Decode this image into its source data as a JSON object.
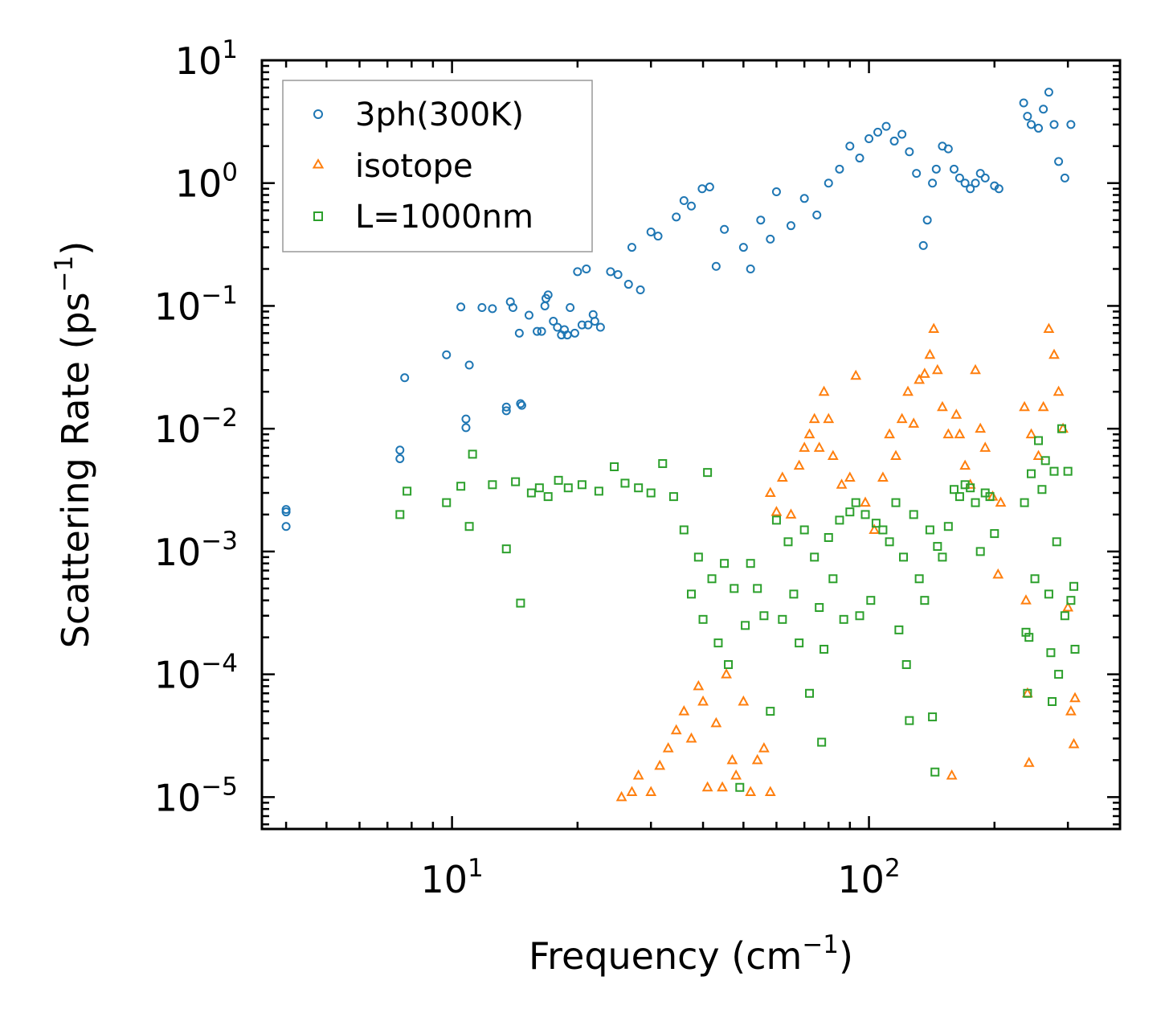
{
  "chart_data": {
    "type": "scatter",
    "title": "",
    "xlabel": "Frequency (cm",
    "xlabel_sup": "−1",
    "xlabel_end": ")",
    "ylabel": "Scattering Rate (ps",
    "ylabel_sup": "−1",
    "ylabel_end": ")",
    "xscale": "log",
    "yscale": "log",
    "xlim": [
      3.5,
      400
    ],
    "ylim": [
      5.5e-06,
      10
    ],
    "x_ticks": [
      {
        "value": 10,
        "base": "10",
        "exp": "1"
      },
      {
        "value": 100,
        "base": "10",
        "exp": "2"
      }
    ],
    "y_ticks": [
      {
        "value": 10,
        "base": "10",
        "exp": "1"
      },
      {
        "value": 1,
        "base": "10",
        "exp": "0"
      },
      {
        "value": 0.1,
        "base": "10",
        "exp": "−1"
      },
      {
        "value": 0.01,
        "base": "10",
        "exp": "−2"
      },
      {
        "value": 0.001,
        "base": "10",
        "exp": "−3"
      },
      {
        "value": 0.0001,
        "base": "10",
        "exp": "−4"
      },
      {
        "value": 1e-05,
        "base": "10",
        "exp": "−5"
      }
    ],
    "legend_position": "top-left",
    "series": [
      {
        "name": "3ph(300K)",
        "marker": "circle",
        "color": "#1f77b4",
        "points": [
          [
            4.0,
            0.0022
          ],
          [
            4.0,
            0.0021
          ],
          [
            4.0,
            0.0016
          ],
          [
            7.5,
            0.0067
          ],
          [
            7.5,
            0.0057
          ],
          [
            7.7,
            0.026
          ],
          [
            9.7,
            0.04
          ],
          [
            10.5,
            0.098
          ],
          [
            10.8,
            0.012
          ],
          [
            10.8,
            0.0102
          ],
          [
            11.0,
            0.033
          ],
          [
            11.8,
            0.097
          ],
          [
            12.5,
            0.095
          ],
          [
            13.5,
            0.015
          ],
          [
            13.5,
            0.014
          ],
          [
            13.8,
            0.108
          ],
          [
            14.0,
            0.097
          ],
          [
            14.5,
            0.06
          ],
          [
            14.6,
            0.016
          ],
          [
            14.7,
            0.0155
          ],
          [
            15.3,
            0.084
          ],
          [
            16.0,
            0.062
          ],
          [
            16.4,
            0.062
          ],
          [
            16.7,
            0.1
          ],
          [
            16.8,
            0.115
          ],
          [
            17.0,
            0.123
          ],
          [
            17.5,
            0.075
          ],
          [
            17.9,
            0.067
          ],
          [
            18.3,
            0.058
          ],
          [
            18.6,
            0.064
          ],
          [
            18.9,
            0.058
          ],
          [
            19.2,
            0.097
          ],
          [
            19.7,
            0.06
          ],
          [
            20.0,
            0.19
          ],
          [
            20.5,
            0.07
          ],
          [
            21.0,
            0.2
          ],
          [
            21.2,
            0.07
          ],
          [
            21.8,
            0.085
          ],
          [
            22.0,
            0.075
          ],
          [
            22.7,
            0.067
          ],
          [
            24.0,
            0.19
          ],
          [
            25.0,
            0.18
          ],
          [
            26.5,
            0.15
          ],
          [
            27.0,
            0.3
          ],
          [
            28.3,
            0.135
          ],
          [
            30.0,
            0.4
          ],
          [
            31.2,
            0.37
          ],
          [
            34.5,
            0.53
          ],
          [
            36.0,
            0.72
          ],
          [
            37.5,
            0.65
          ],
          [
            39.8,
            0.9
          ],
          [
            41.5,
            0.93
          ],
          [
            43.0,
            0.21
          ],
          [
            45.0,
            0.42
          ],
          [
            50.0,
            0.3
          ],
          [
            52.0,
            0.2
          ],
          [
            55.0,
            0.5
          ],
          [
            58.0,
            0.35
          ],
          [
            60.0,
            0.85
          ],
          [
            65.0,
            0.45
          ],
          [
            70.0,
            0.75
          ],
          [
            75.0,
            0.55
          ],
          [
            80.0,
            1.0
          ],
          [
            85.0,
            1.3
          ],
          [
            90.0,
            2.0
          ],
          [
            95.0,
            1.6
          ],
          [
            100.0,
            2.3
          ],
          [
            105.0,
            2.6
          ],
          [
            110.0,
            2.9
          ],
          [
            115.0,
            2.2
          ],
          [
            120.0,
            2.5
          ],
          [
            125.0,
            1.8
          ],
          [
            130.0,
            1.2
          ],
          [
            135.0,
            0.31
          ],
          [
            138.0,
            0.5
          ],
          [
            142.0,
            1.0
          ],
          [
            145.0,
            1.3
          ],
          [
            150.0,
            2.0
          ],
          [
            155.0,
            1.9
          ],
          [
            160.0,
            1.3
          ],
          [
            165.0,
            1.1
          ],
          [
            170.0,
            1.0
          ],
          [
            175.0,
            0.9
          ],
          [
            180.0,
            1.0
          ],
          [
            185.0,
            1.2
          ],
          [
            190.0,
            1.1
          ],
          [
            200.0,
            0.95
          ],
          [
            205.0,
            0.9
          ],
          [
            235.0,
            4.5
          ],
          [
            240.0,
            3.5
          ],
          [
            245.0,
            3.0
          ],
          [
            255.0,
            2.8
          ],
          [
            262.0,
            4.0
          ],
          [
            270.0,
            5.5
          ],
          [
            278.0,
            3.0
          ],
          [
            285.0,
            1.5
          ],
          [
            295.0,
            1.1
          ],
          [
            305.0,
            3.0
          ]
        ]
      },
      {
        "name": "isotope",
        "marker": "triangle",
        "color": "#ff7f0e",
        "points": [
          [
            25.5,
            1e-05
          ],
          [
            27.0,
            1.1e-05
          ],
          [
            28.0,
            1.5e-05
          ],
          [
            30.0,
            1.1e-05
          ],
          [
            31.5,
            1.8e-05
          ],
          [
            33.0,
            2.5e-05
          ],
          [
            34.5,
            3.5e-05
          ],
          [
            36.0,
            5e-05
          ],
          [
            37.5,
            3e-05
          ],
          [
            39.0,
            8e-05
          ],
          [
            40.0,
            6e-05
          ],
          [
            41.0,
            1.2e-05
          ],
          [
            43.0,
            4e-05
          ],
          [
            44.5,
            1.2e-05
          ],
          [
            45.5,
            0.0001
          ],
          [
            47.0,
            2e-05
          ],
          [
            48.0,
            1.5e-05
          ],
          [
            50.0,
            6e-05
          ],
          [
            52.0,
            1.1e-05
          ],
          [
            54.0,
            2e-05
          ],
          [
            56.0,
            2.5e-05
          ],
          [
            58.0,
            1.1e-05
          ],
          [
            58.0,
            0.003
          ],
          [
            60.0,
            0.0021
          ],
          [
            62.0,
            0.004
          ],
          [
            65.0,
            0.002
          ],
          [
            68.0,
            0.005
          ],
          [
            70.0,
            0.007
          ],
          [
            72.0,
            0.009
          ],
          [
            74.0,
            0.012
          ],
          [
            76.0,
            0.007
          ],
          [
            78.0,
            0.02
          ],
          [
            80.0,
            0.012
          ],
          [
            82.0,
            0.006
          ],
          [
            86.0,
            0.0035
          ],
          [
            90.0,
            0.004
          ],
          [
            93.0,
            0.027
          ],
          [
            98.0,
            0.0025
          ],
          [
            103.0,
            0.0015
          ],
          [
            108.0,
            0.004
          ],
          [
            112.0,
            0.009
          ],
          [
            116.0,
            0.006
          ],
          [
            120.0,
            0.012
          ],
          [
            124.0,
            0.02
          ],
          [
            128.0,
            0.011
          ],
          [
            132.0,
            0.025
          ],
          [
            136.0,
            0.028
          ],
          [
            140.0,
            0.04
          ],
          [
            143.0,
            0.065
          ],
          [
            146.0,
            0.03
          ],
          [
            150.0,
            0.015
          ],
          [
            155.0,
            0.009
          ],
          [
            158.0,
            1.5e-05
          ],
          [
            162.0,
            0.013
          ],
          [
            165.0,
            0.009
          ],
          [
            170.0,
            0.005
          ],
          [
            175.0,
            0.0035
          ],
          [
            180.0,
            0.03
          ],
          [
            185.0,
            0.01
          ],
          [
            190.0,
            0.007
          ],
          [
            198.0,
            0.0028
          ],
          [
            204.0,
            0.00065
          ],
          [
            207.0,
            0.0025
          ],
          [
            236.0,
            0.015
          ],
          [
            238.0,
            0.0004
          ],
          [
            240.0,
            7e-05
          ],
          [
            242.0,
            1.9e-05
          ],
          [
            245.0,
            0.009
          ],
          [
            255.0,
            0.006
          ],
          [
            262.0,
            0.015
          ],
          [
            270.0,
            0.065
          ],
          [
            278.0,
            0.04
          ],
          [
            285.0,
            0.02
          ],
          [
            292.0,
            0.01
          ],
          [
            300.0,
            0.00035
          ],
          [
            305.0,
            5e-05
          ],
          [
            310.0,
            2.7e-05
          ],
          [
            312.0,
            6.4e-05
          ]
        ]
      },
      {
        "name": "L=1000nm",
        "marker": "square",
        "color": "#2ca02c",
        "points": [
          [
            7.5,
            0.002
          ],
          [
            7.8,
            0.0031
          ],
          [
            9.7,
            0.0025
          ],
          [
            10.5,
            0.0034
          ],
          [
            11.0,
            0.0016
          ],
          [
            11.2,
            0.0062
          ],
          [
            12.5,
            0.0035
          ],
          [
            13.5,
            0.00105
          ],
          [
            14.2,
            0.0037
          ],
          [
            14.6,
            0.00038
          ],
          [
            15.5,
            0.003
          ],
          [
            16.2,
            0.0033
          ],
          [
            17.0,
            0.0028
          ],
          [
            18.0,
            0.0038
          ],
          [
            19.0,
            0.0033
          ],
          [
            20.5,
            0.0035
          ],
          [
            22.5,
            0.0031
          ],
          [
            24.5,
            0.0049
          ],
          [
            26.0,
            0.0036
          ],
          [
            28.0,
            0.0033
          ],
          [
            30.0,
            0.003
          ],
          [
            32.0,
            0.0052
          ],
          [
            34.0,
            0.0028
          ],
          [
            36.0,
            0.0015
          ],
          [
            37.5,
            0.00045
          ],
          [
            39.0,
            0.0009
          ],
          [
            40.0,
            0.00028
          ],
          [
            41.0,
            0.0044
          ],
          [
            42.0,
            0.0006
          ],
          [
            43.5,
            0.00018
          ],
          [
            45.0,
            0.0008
          ],
          [
            46.0,
            0.00012
          ],
          [
            47.5,
            0.0005
          ],
          [
            49.0,
            1.2e-05
          ],
          [
            50.5,
            0.00025
          ],
          [
            52.0,
            0.0008
          ],
          [
            54.0,
            0.0005
          ],
          [
            56.0,
            0.0003
          ],
          [
            58.0,
            5e-05
          ],
          [
            60.0,
            0.0018
          ],
          [
            62.0,
            0.00028
          ],
          [
            64.0,
            0.0012
          ],
          [
            66.0,
            0.00045
          ],
          [
            68.0,
            0.00018
          ],
          [
            70.0,
            0.0015
          ],
          [
            72.0,
            7e-05
          ],
          [
            74.0,
            0.0009
          ],
          [
            76.0,
            0.00035
          ],
          [
            77.0,
            2.8e-05
          ],
          [
            78.0,
            0.00016
          ],
          [
            80.0,
            0.0013
          ],
          [
            82.0,
            0.0006
          ],
          [
            85.0,
            0.0018
          ],
          [
            87.0,
            0.00028
          ],
          [
            90.0,
            0.0021
          ],
          [
            93.0,
            0.0025
          ],
          [
            95.0,
            0.0003
          ],
          [
            98.0,
            0.002
          ],
          [
            101.0,
            0.0004
          ],
          [
            104.0,
            0.0017
          ],
          [
            108.0,
            0.0015
          ],
          [
            112.0,
            0.0012
          ],
          [
            116.0,
            0.0025
          ],
          [
            118.0,
            0.00023
          ],
          [
            121.0,
            0.0009
          ],
          [
            123.0,
            0.00012
          ],
          [
            125.0,
            4.2e-05
          ],
          [
            128.0,
            0.002
          ],
          [
            132.0,
            0.0006
          ],
          [
            136.0,
            0.0004
          ],
          [
            140.0,
            0.0015
          ],
          [
            142.0,
            4.5e-05
          ],
          [
            144.0,
            1.6e-05
          ],
          [
            146.0,
            0.0011
          ],
          [
            150.0,
            0.0009
          ],
          [
            155.0,
            0.0016
          ],
          [
            160.0,
            0.0032
          ],
          [
            165.0,
            0.0028
          ],
          [
            170.0,
            0.0035
          ],
          [
            175.0,
            0.0033
          ],
          [
            180.0,
            0.0025
          ],
          [
            185.0,
            0.001
          ],
          [
            190.0,
            0.003
          ],
          [
            195.0,
            0.0028
          ],
          [
            200.0,
            0.0014
          ],
          [
            236.0,
            0.0025
          ],
          [
            238.0,
            0.00022
          ],
          [
            240.0,
            7e-05
          ],
          [
            242.0,
            0.0002
          ],
          [
            245.0,
            0.0043
          ],
          [
            250.0,
            0.0006
          ],
          [
            255.0,
            0.008
          ],
          [
            260.0,
            0.0032
          ],
          [
            265.0,
            0.0055
          ],
          [
            270.0,
            0.00045
          ],
          [
            273.0,
            0.00015
          ],
          [
            275.0,
            6e-05
          ],
          [
            278.0,
            0.0045
          ],
          [
            282.0,
            0.0012
          ],
          [
            285.0,
            0.0001
          ],
          [
            290.0,
            0.01
          ],
          [
            295.0,
            0.0003
          ],
          [
            300.0,
            0.0045
          ],
          [
            305.0,
            0.0004
          ],
          [
            310.0,
            0.00052
          ],
          [
            312.0,
            0.00016
          ]
        ]
      }
    ]
  }
}
